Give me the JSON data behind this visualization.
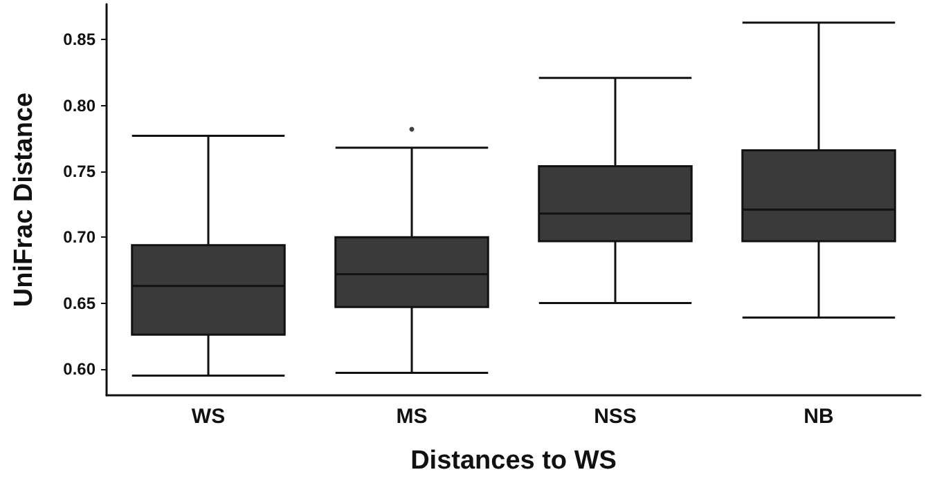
{
  "chart_data": {
    "type": "box",
    "xlabel": "Distances to WS",
    "ylabel": "UniFrac Distance",
    "categories": [
      "WS",
      "MS",
      "NSS",
      "NB"
    ],
    "series": [
      {
        "color": "#3a3a3a",
        "boxes": [
          {
            "low": 0.595,
            "q1": 0.626,
            "median": 0.663,
            "q3": 0.694,
            "high": 0.777
          },
          {
            "low": 0.597,
            "q1": 0.647,
            "median": 0.672,
            "q3": 0.7,
            "high": 0.768,
            "outliers": [
              0.782
            ]
          },
          {
            "low": 0.65,
            "q1": 0.697,
            "median": 0.718,
            "q3": 0.754,
            "high": 0.821
          },
          {
            "low": 0.639,
            "q1": 0.697,
            "median": 0.721,
            "q3": 0.766,
            "high": 0.863
          }
        ]
      }
    ],
    "ylim": [
      0.58,
      0.877
    ],
    "yticks": [
      {
        "value": 0.6,
        "label": "0.60"
      },
      {
        "value": 0.65,
        "label": "0.65"
      },
      {
        "value": 0.7,
        "label": "0.70"
      },
      {
        "value": 0.75,
        "label": "0.75"
      },
      {
        "value": 0.8,
        "label": "0.80"
      },
      {
        "value": 0.85,
        "label": "0.85"
      }
    ],
    "grid": false
  }
}
